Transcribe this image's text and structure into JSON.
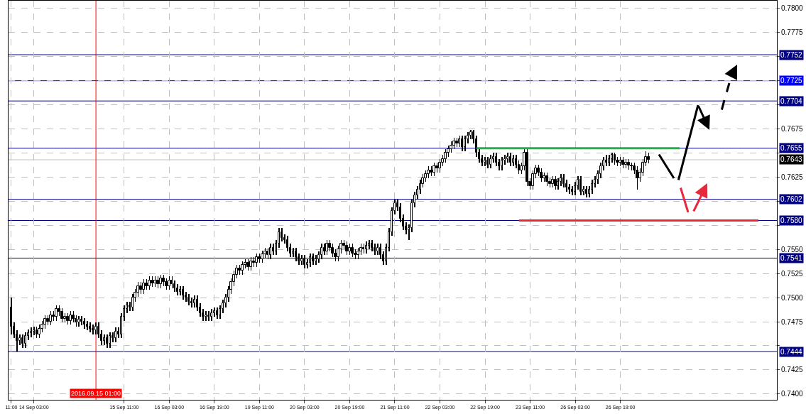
{
  "chart_data": {
    "type": "candlestick",
    "categories": [
      "11:00",
      null,
      null,
      null,
      null,
      null,
      null,
      null,
      "14 Sep 03:00",
      null,
      null,
      null,
      null,
      null,
      null,
      null,
      null,
      null,
      null,
      null,
      null,
      null,
      null,
      null,
      null,
      null,
      null,
      null,
      null,
      null,
      "2016.09.15 01:00",
      null,
      null,
      null,
      null,
      null,
      null,
      null,
      null,
      null,
      "15 Sep 11:00",
      null,
      null,
      null,
      null,
      null,
      null,
      null,
      null,
      null,
      null,
      null,
      null,
      null,
      null,
      null,
      "16 Sep 03:00",
      null,
      null,
      null,
      null,
      null,
      null,
      null,
      null,
      null,
      null,
      null,
      null,
      null,
      null,
      null,
      "16 Sep 19:00",
      null,
      null,
      null,
      null,
      null,
      null,
      null,
      null,
      null,
      null,
      null,
      null,
      null,
      null,
      null,
      "19 Sep 11:00",
      null,
      null,
      null,
      null,
      null,
      null,
      null,
      null,
      null,
      null,
      null,
      null,
      null,
      null,
      null,
      "20 Sep 03:00",
      null,
      null,
      null,
      null,
      null,
      null,
      null,
      null,
      null,
      null,
      null,
      null,
      null,
      null,
      null,
      "20 Sep 19:00",
      null,
      null,
      null,
      null,
      null,
      null,
      null,
      null,
      null,
      null,
      null,
      null,
      null,
      null,
      null,
      "21 Sep 11:00",
      null,
      null,
      null,
      null,
      null,
      null,
      null,
      null,
      null,
      null,
      null,
      null,
      null,
      null,
      null,
      "22 Sep 03:00",
      null,
      null,
      null,
      null,
      null,
      null,
      null,
      null,
      null,
      null,
      null,
      null,
      null,
      null,
      null,
      "22 Sep 19:00",
      null,
      null,
      null,
      null,
      null,
      null,
      null,
      null,
      null,
      null,
      null,
      null,
      null,
      null,
      null,
      "23 Sep 11:00",
      null,
      null,
      null,
      null,
      null,
      null,
      null,
      null,
      null,
      null,
      null,
      null,
      null,
      null,
      null,
      "26 Sep 03:00",
      null,
      null,
      null,
      null,
      null,
      null,
      null,
      null,
      null,
      null,
      null,
      null,
      null,
      null,
      null,
      "26 Sep 19:00",
      null,
      null,
      null,
      null,
      null,
      null,
      null,
      null,
      null,
      null,
      null,
      null,
      null,
      null,
      null,
      null,
      null,
      null,
      null,
      null,
      null,
      null,
      null,
      null,
      null,
      null,
      null,
      null,
      null,
      null,
      null,
      null,
      null,
      null,
      null,
      null,
      null,
      null,
      null,
      null,
      null,
      null,
      null,
      null,
      null,
      null,
      null,
      null,
      null,
      null,
      null,
      null,
      null,
      null,
      null
    ],
    "ohlc": [
      [
        0.749,
        0.75,
        0.7462,
        0.747
      ],
      [
        0.747,
        0.7474,
        0.7458,
        0.7462
      ],
      [
        0.7462,
        0.7466,
        0.7444,
        0.7455
      ],
      [
        0.7455,
        0.7462,
        0.7451,
        0.7458
      ],
      [
        0.7458,
        0.7462,
        0.7448,
        0.7452
      ],
      [
        0.7452,
        0.7464,
        0.7448,
        0.746
      ],
      [
        0.746,
        0.7467,
        0.7456,
        0.7463
      ],
      [
        0.7463,
        0.7469,
        0.7459,
        0.7465
      ],
      [
        0.7465,
        0.747,
        0.7461,
        0.7466
      ],
      [
        0.7466,
        0.747,
        0.7458,
        0.7462
      ],
      [
        0.7462,
        0.7472,
        0.7458,
        0.7468
      ],
      [
        0.7468,
        0.7476,
        0.7464,
        0.7472
      ],
      [
        0.7472,
        0.7482,
        0.7468,
        0.7478
      ],
      [
        0.7478,
        0.7482,
        0.7471,
        0.7475
      ],
      [
        0.7475,
        0.7486,
        0.7471,
        0.7482
      ],
      [
        0.7482,
        0.7486,
        0.7476,
        0.748
      ],
      [
        0.748,
        0.7492,
        0.7476,
        0.7488
      ],
      [
        0.7488,
        0.7492,
        0.7481,
        0.7485
      ],
      [
        0.7485,
        0.7489,
        0.7474,
        0.7478
      ],
      [
        0.7478,
        0.7484,
        0.7474,
        0.748
      ],
      [
        0.748,
        0.7484,
        0.7472,
        0.7476
      ],
      [
        0.7476,
        0.7486,
        0.7472,
        0.7482
      ],
      [
        0.7482,
        0.7486,
        0.7474,
        0.7478
      ],
      [
        0.7478,
        0.7482,
        0.747,
        0.7474
      ],
      [
        0.7474,
        0.7481,
        0.747,
        0.7477
      ],
      [
        0.7477,
        0.7481,
        0.7471,
        0.7475
      ],
      [
        0.7475,
        0.7479,
        0.7468,
        0.7472
      ],
      [
        0.7472,
        0.7476,
        0.7466,
        0.747
      ],
      [
        0.747,
        0.7474,
        0.7464,
        0.7468
      ],
      [
        0.7468,
        0.7472,
        0.7462,
        0.7466
      ],
      [
        0.7466,
        0.7474,
        0.7462,
        0.747
      ],
      [
        0.747,
        0.7474,
        0.7458,
        0.7462
      ],
      [
        0.7462,
        0.7466,
        0.7451,
        0.7455
      ],
      [
        0.7455,
        0.7462,
        0.7451,
        0.7458
      ],
      [
        0.7458,
        0.7462,
        0.7448,
        0.7452
      ],
      [
        0.7452,
        0.7464,
        0.7448,
        0.746
      ],
      [
        0.746,
        0.7464,
        0.7454,
        0.7458
      ],
      [
        0.7458,
        0.7469,
        0.7454,
        0.7465
      ],
      [
        0.7465,
        0.7469,
        0.7458,
        0.7462
      ],
      [
        0.7462,
        0.7484,
        0.7458,
        0.748
      ],
      [
        0.748,
        0.7492,
        0.7476,
        0.7488
      ],
      [
        0.7488,
        0.7496,
        0.7484,
        0.7492
      ],
      [
        0.7492,
        0.7496,
        0.7486,
        0.749
      ],
      [
        0.749,
        0.7504,
        0.7486,
        0.75
      ],
      [
        0.75,
        0.7509,
        0.7496,
        0.7505
      ],
      [
        0.7505,
        0.7516,
        0.7501,
        0.7512
      ],
      [
        0.7512,
        0.7516,
        0.7504,
        0.7508
      ],
      [
        0.7508,
        0.7519,
        0.7504,
        0.7515
      ],
      [
        0.7515,
        0.7519,
        0.7508,
        0.7512
      ],
      [
        0.7512,
        0.7522,
        0.7508,
        0.7518
      ],
      [
        0.7518,
        0.7522,
        0.7511,
        0.7515
      ],
      [
        0.7515,
        0.7522,
        0.7511,
        0.7518
      ],
      [
        0.7518,
        0.7522,
        0.751,
        0.7514
      ],
      [
        0.7514,
        0.7524,
        0.751,
        0.752
      ],
      [
        0.752,
        0.7524,
        0.7512,
        0.7516
      ],
      [
        0.7516,
        0.752,
        0.7508,
        0.7512
      ],
      [
        0.7512,
        0.7522,
        0.7508,
        0.7518
      ],
      [
        0.7518,
        0.7522,
        0.751,
        0.7514
      ],
      [
        0.7514,
        0.7518,
        0.7506,
        0.751
      ],
      [
        0.751,
        0.7514,
        0.7502,
        0.7506
      ],
      [
        0.7506,
        0.7512,
        0.7502,
        0.7508
      ],
      [
        0.7508,
        0.7512,
        0.7498,
        0.7502
      ],
      [
        0.7502,
        0.7506,
        0.7496,
        0.75
      ],
      [
        0.75,
        0.7504,
        0.7492,
        0.7496
      ],
      [
        0.7496,
        0.75,
        0.749,
        0.7494
      ],
      [
        0.7494,
        0.7502,
        0.749,
        0.7498
      ],
      [
        0.7498,
        0.7502,
        0.7486,
        0.749
      ],
      [
        0.749,
        0.7494,
        0.748,
        0.7484
      ],
      [
        0.7484,
        0.7488,
        0.7476,
        0.748
      ],
      [
        0.748,
        0.7486,
        0.7476,
        0.7482
      ],
      [
        0.7482,
        0.7486,
        0.7476,
        0.748
      ],
      [
        0.748,
        0.7488,
        0.7476,
        0.7484
      ],
      [
        0.7484,
        0.749,
        0.748,
        0.7486
      ],
      [
        0.7486,
        0.749,
        0.7478,
        0.7482
      ],
      [
        0.7482,
        0.7492,
        0.7478,
        0.7488
      ],
      [
        0.7488,
        0.7498,
        0.7484,
        0.7494
      ],
      [
        0.7494,
        0.7504,
        0.749,
        0.75
      ],
      [
        0.75,
        0.7512,
        0.7496,
        0.7508
      ],
      [
        0.7508,
        0.752,
        0.7504,
        0.7516
      ],
      [
        0.7516,
        0.7528,
        0.7512,
        0.7524
      ],
      [
        0.7524,
        0.7534,
        0.752,
        0.753
      ],
      [
        0.753,
        0.7534,
        0.7524,
        0.7528
      ],
      [
        0.7528,
        0.7538,
        0.7524,
        0.7534
      ],
      [
        0.7534,
        0.754,
        0.753,
        0.7536
      ],
      [
        0.7536,
        0.754,
        0.7528,
        0.7532
      ],
      [
        0.7532,
        0.7542,
        0.7528,
        0.7538
      ],
      [
        0.7538,
        0.7542,
        0.7532,
        0.7536
      ],
      [
        0.7536,
        0.7546,
        0.7532,
        0.7542
      ],
      [
        0.7542,
        0.7546,
        0.7536,
        0.754
      ],
      [
        0.754,
        0.7549,
        0.7536,
        0.7545
      ],
      [
        0.7545,
        0.7552,
        0.7541,
        0.7548
      ],
      [
        0.7548,
        0.7552,
        0.754,
        0.7544
      ],
      [
        0.7544,
        0.7556,
        0.754,
        0.7552
      ],
      [
        0.7552,
        0.7556,
        0.7544,
        0.7548
      ],
      [
        0.7548,
        0.756,
        0.7544,
        0.7556
      ],
      [
        0.7556,
        0.7572,
        0.7552,
        0.7568
      ],
      [
        0.7568,
        0.7572,
        0.7558,
        0.7562
      ],
      [
        0.7562,
        0.7566,
        0.7556,
        0.756
      ],
      [
        0.756,
        0.7564,
        0.7548,
        0.7552
      ],
      [
        0.7552,
        0.7556,
        0.7542,
        0.7546
      ],
      [
        0.7546,
        0.7552,
        0.7542,
        0.7548
      ],
      [
        0.7548,
        0.7552,
        0.7538,
        0.7542
      ],
      [
        0.7542,
        0.7546,
        0.7534,
        0.7538
      ],
      [
        0.7538,
        0.7544,
        0.7534,
        0.754
      ],
      [
        0.754,
        0.7544,
        0.753,
        0.7534
      ],
      [
        0.7534,
        0.754,
        0.753,
        0.7536
      ],
      [
        0.7536,
        0.7546,
        0.7532,
        0.7542
      ],
      [
        0.7542,
        0.7546,
        0.7534,
        0.7538
      ],
      [
        0.7538,
        0.7544,
        0.7534,
        0.754
      ],
      [
        0.754,
        0.7548,
        0.7536,
        0.7544
      ],
      [
        0.7544,
        0.7556,
        0.754,
        0.7552
      ],
      [
        0.7552,
        0.7556,
        0.7544,
        0.7548
      ],
      [
        0.7548,
        0.756,
        0.7544,
        0.7556
      ],
      [
        0.7556,
        0.756,
        0.7548,
        0.7552
      ],
      [
        0.7552,
        0.7556,
        0.7542,
        0.7546
      ],
      [
        0.7546,
        0.755,
        0.7538,
        0.7542
      ],
      [
        0.7542,
        0.7554,
        0.7538,
        0.755
      ],
      [
        0.755,
        0.756,
        0.7546,
        0.7556
      ],
      [
        0.7556,
        0.756,
        0.755,
        0.7554
      ],
      [
        0.7554,
        0.7558,
        0.7544,
        0.7548
      ],
      [
        0.7548,
        0.7556,
        0.7544,
        0.7552
      ],
      [
        0.7552,
        0.7556,
        0.7542,
        0.7546
      ],
      [
        0.7546,
        0.755,
        0.754,
        0.7544
      ],
      [
        0.7544,
        0.7552,
        0.754,
        0.7548
      ],
      [
        0.7548,
        0.7556,
        0.7544,
        0.7552
      ],
      [
        0.7552,
        0.7556,
        0.7546,
        0.755
      ],
      [
        0.755,
        0.7558,
        0.7546,
        0.7554
      ],
      [
        0.7554,
        0.756,
        0.755,
        0.7556
      ],
      [
        0.7556,
        0.756,
        0.7548,
        0.7552
      ],
      [
        0.7552,
        0.7556,
        0.7544,
        0.7548
      ],
      [
        0.7548,
        0.7556,
        0.7544,
        0.7552
      ],
      [
        0.7552,
        0.7556,
        0.754,
        0.7544
      ],
      [
        0.7544,
        0.7548,
        0.7534,
        0.7538
      ],
      [
        0.7538,
        0.7556,
        0.7534,
        0.7552
      ],
      [
        0.7552,
        0.7572,
        0.7548,
        0.7568
      ],
      [
        0.7568,
        0.7594,
        0.7564,
        0.759
      ],
      [
        0.759,
        0.7602,
        0.7586,
        0.7598
      ],
      [
        0.7598,
        0.7602,
        0.759,
        0.7594
      ],
      [
        0.7594,
        0.7598,
        0.7578,
        0.7582
      ],
      [
        0.7582,
        0.7586,
        0.757,
        0.7574
      ],
      [
        0.7574,
        0.7578,
        0.7566,
        0.757
      ],
      [
        0.757,
        0.7576,
        0.756,
        0.7572
      ],
      [
        0.7572,
        0.7602,
        0.7568,
        0.7598
      ],
      [
        0.7598,
        0.761,
        0.7594,
        0.7606
      ],
      [
        0.7606,
        0.7616,
        0.7602,
        0.7612
      ],
      [
        0.7612,
        0.7622,
        0.7608,
        0.7618
      ],
      [
        0.7618,
        0.7628,
        0.7614,
        0.7624
      ],
      [
        0.7624,
        0.7632,
        0.762,
        0.7628
      ],
      [
        0.7628,
        0.7636,
        0.7624,
        0.7632
      ],
      [
        0.7632,
        0.7636,
        0.7626,
        0.763
      ],
      [
        0.763,
        0.764,
        0.7626,
        0.7636
      ],
      [
        0.7636,
        0.764,
        0.763,
        0.7634
      ],
      [
        0.7634,
        0.7644,
        0.763,
        0.764
      ],
      [
        0.764,
        0.7648,
        0.7636,
        0.7644
      ],
      [
        0.7644,
        0.7654,
        0.764,
        0.765
      ],
      [
        0.765,
        0.7658,
        0.7646,
        0.7654
      ],
      [
        0.7654,
        0.7662,
        0.765,
        0.7658
      ],
      [
        0.7658,
        0.7666,
        0.7654,
        0.7662
      ],
      [
        0.7662,
        0.7666,
        0.7656,
        0.766
      ],
      [
        0.766,
        0.7668,
        0.7656,
        0.7664
      ],
      [
        0.7664,
        0.7668,
        0.7652,
        0.7656
      ],
      [
        0.7656,
        0.7668,
        0.7652,
        0.7664
      ],
      [
        0.7664,
        0.7672,
        0.766,
        0.7668
      ],
      [
        0.7668,
        0.7674,
        0.7664,
        0.7672
      ],
      [
        0.7672,
        0.7674,
        0.766,
        0.7664
      ],
      [
        0.7664,
        0.7668,
        0.7646,
        0.765
      ],
      [
        0.765,
        0.7654,
        0.764,
        0.7644
      ],
      [
        0.7644,
        0.7648,
        0.7636,
        0.764
      ],
      [
        0.764,
        0.7646,
        0.7636,
        0.7642
      ],
      [
        0.7642,
        0.7646,
        0.7634,
        0.7638
      ],
      [
        0.7638,
        0.7648,
        0.7634,
        0.7644
      ],
      [
        0.7644,
        0.765,
        0.764,
        0.7646
      ],
      [
        0.7646,
        0.765,
        0.7636,
        0.764
      ],
      [
        0.764,
        0.7644,
        0.7632,
        0.7636
      ],
      [
        0.7636,
        0.7646,
        0.7632,
        0.7642
      ],
      [
        0.7642,
        0.7648,
        0.7638,
        0.7644
      ],
      [
        0.7644,
        0.765,
        0.764,
        0.7646
      ],
      [
        0.7646,
        0.765,
        0.7636,
        0.764
      ],
      [
        0.764,
        0.7648,
        0.7636,
        0.7644
      ],
      [
        0.7644,
        0.7648,
        0.7634,
        0.7638
      ],
      [
        0.7638,
        0.7642,
        0.7628,
        0.7632
      ],
      [
        0.7632,
        0.764,
        0.7628,
        0.7636
      ],
      [
        0.7636,
        0.7654,
        0.7632,
        0.765
      ],
      [
        0.765,
        0.7654,
        0.7616,
        0.762
      ],
      [
        0.762,
        0.7624,
        0.7612,
        0.7616
      ],
      [
        0.7616,
        0.7632,
        0.7612,
        0.7628
      ],
      [
        0.7628,
        0.7638,
        0.7624,
        0.7634
      ],
      [
        0.7634,
        0.7638,
        0.7626,
        0.763
      ],
      [
        0.763,
        0.7634,
        0.762,
        0.7624
      ],
      [
        0.7624,
        0.763,
        0.762,
        0.7626
      ],
      [
        0.7626,
        0.763,
        0.7616,
        0.762
      ],
      [
        0.762,
        0.7624,
        0.7614,
        0.7618
      ],
      [
        0.7618,
        0.7626,
        0.7614,
        0.7622
      ],
      [
        0.7622,
        0.7626,
        0.7612,
        0.7616
      ],
      [
        0.7616,
        0.7624,
        0.7612,
        0.762
      ],
      [
        0.762,
        0.7628,
        0.7616,
        0.7624
      ],
      [
        0.7624,
        0.7628,
        0.7614,
        0.7618
      ],
      [
        0.7618,
        0.7622,
        0.761,
        0.7614
      ],
      [
        0.7614,
        0.7618,
        0.7608,
        0.7612
      ],
      [
        0.7612,
        0.7616,
        0.7606,
        0.761
      ],
      [
        0.761,
        0.762,
        0.7606,
        0.7616
      ],
      [
        0.7616,
        0.7626,
        0.7612,
        0.7622
      ],
      [
        0.7622,
        0.7626,
        0.7606,
        0.761
      ],
      [
        0.761,
        0.7616,
        0.7606,
        0.7612
      ],
      [
        0.7612,
        0.7616,
        0.7604,
        0.7608
      ],
      [
        0.7608,
        0.7616,
        0.7604,
        0.7612
      ],
      [
        0.7612,
        0.7622,
        0.7608,
        0.7618
      ],
      [
        0.7618,
        0.7626,
        0.7614,
        0.7622
      ],
      [
        0.7622,
        0.7632,
        0.7618,
        0.7628
      ],
      [
        0.7628,
        0.764,
        0.7624,
        0.7636
      ],
      [
        0.7636,
        0.7646,
        0.7632,
        0.7642
      ],
      [
        0.7642,
        0.7648,
        0.7636,
        0.764
      ],
      [
        0.764,
        0.7648,
        0.7636,
        0.7644
      ],
      [
        0.7644,
        0.765,
        0.764,
        0.7648
      ],
      [
        0.7648,
        0.765,
        0.7638,
        0.7642
      ],
      [
        0.7642,
        0.7646,
        0.7636,
        0.764
      ],
      [
        0.764,
        0.7646,
        0.7636,
        0.7642
      ],
      [
        0.7642,
        0.7646,
        0.7634,
        0.7638
      ],
      [
        0.7638,
        0.7644,
        0.7634,
        0.764
      ],
      [
        0.764,
        0.7644,
        0.7633,
        0.7637
      ],
      [
        0.7637,
        0.764,
        0.7632,
        0.7636
      ],
      [
        0.7636,
        0.764,
        0.7628,
        0.7632
      ],
      [
        0.7632,
        0.7636,
        0.7612,
        0.7624
      ],
      [
        0.7624,
        0.7634,
        0.762,
        0.763
      ],
      [
        0.763,
        0.7644,
        0.7626,
        0.764
      ],
      [
        0.764,
        0.7652,
        0.7636,
        0.7646
      ],
      [
        0.7646,
        0.765,
        0.7639,
        0.7643
      ],
      null,
      null,
      null,
      null,
      null,
      null,
      null,
      null,
      null,
      null,
      null,
      null,
      null,
      null,
      null,
      null,
      null,
      null,
      null,
      null,
      null,
      null,
      null,
      null,
      null,
      null,
      null,
      null,
      null,
      null,
      null,
      null,
      null,
      null,
      null,
      null,
      null,
      null,
      null,
      null,
      null,
      null,
      null,
      null,
      null
    ],
    "series": [
      {
        "type": "line",
        "color": "#22b14c",
        "values": [
          null,
          null,
          null,
          null,
          null,
          null,
          null,
          null,
          null,
          null,
          null,
          null,
          null,
          null,
          null,
          null,
          null,
          null,
          null,
          null,
          null,
          null,
          null,
          null,
          null,
          null,
          null,
          null,
          null,
          null,
          null,
          null,
          null,
          null,
          null,
          null,
          null,
          null,
          null,
          null,
          null,
          null,
          null,
          null,
          null,
          null,
          null,
          null,
          null,
          null,
          null,
          null,
          null,
          null,
          null,
          null,
          null,
          null,
          null,
          null,
          null,
          null,
          null,
          null,
          null,
          null,
          null,
          null,
          null,
          null,
          null,
          null,
          null,
          null,
          null,
          null,
          null,
          null,
          null,
          null,
          null,
          null,
          null,
          null,
          null,
          null,
          null,
          null,
          null,
          null,
          null,
          null,
          null,
          null,
          null,
          null,
          null,
          null,
          null,
          null,
          null,
          null,
          null,
          null,
          null,
          null,
          null,
          null,
          null,
          null,
          null,
          null,
          null,
          null,
          null,
          null,
          null,
          null,
          null,
          null,
          null,
          null,
          null,
          null,
          null,
          null,
          null,
          null,
          null,
          null,
          null,
          null,
          null,
          null,
          null,
          null,
          null,
          null,
          null,
          null,
          null,
          null,
          null,
          null,
          null,
          null,
          null,
          null,
          null,
          null,
          null,
          null,
          null,
          null,
          null,
          null,
          null,
          null,
          null,
          null,
          null,
          null,
          null,
          null,
          null,
          0.7655,
          0.7655,
          0.7655,
          0.7655,
          0.7655,
          0.7655,
          0.7655,
          0.7655,
          0.7655,
          0.7655,
          0.7655,
          0.7655,
          0.7655,
          0.7655,
          0.7655,
          0.7655,
          0.7655,
          0.7655,
          0.7655,
          0.7655,
          0.7655,
          0.7655,
          0.7655,
          0.7655,
          0.7655,
          0.7655,
          0.7655,
          0.7655,
          0.7655,
          0.7655,
          0.7655,
          0.7655,
          0.7655,
          0.7655,
          0.7655,
          0.7655,
          0.7655,
          0.7655,
          0.7655,
          0.7655,
          0.7655,
          0.7655,
          0.7655,
          0.7655,
          0.7655,
          0.7655,
          0.7655,
          0.7655,
          0.7655,
          0.7655,
          0.7655,
          0.7655,
          0.7655,
          0.7655,
          0.7655,
          0.7655,
          0.7655,
          0.7655,
          0.7655,
          0.7655,
          0.7655,
          0.7655,
          0.7655,
          0.7655,
          0.7655,
          0.7655,
          0.7655,
          0.7655,
          0.7655,
          0.7655,
          0.7655,
          0.7655,
          0.7655,
          null,
          null,
          null,
          null,
          null,
          null,
          null,
          null,
          null,
          null,
          null,
          null,
          null,
          null,
          null,
          null,
          null,
          null,
          null,
          null,
          null,
          null,
          null,
          null,
          null,
          null,
          null,
          null,
          null,
          null,
          null,
          null,
          null,
          null
        ]
      },
      {
        "type": "line",
        "color": "#e8283c",
        "values": [
          null,
          null,
          null,
          null,
          null,
          null,
          null,
          null,
          null,
          null,
          null,
          null,
          null,
          null,
          null,
          null,
          null,
          null,
          null,
          null,
          null,
          null,
          null,
          null,
          null,
          null,
          null,
          null,
          null,
          null,
          null,
          null,
          null,
          null,
          null,
          null,
          null,
          null,
          null,
          null,
          null,
          null,
          null,
          null,
          null,
          null,
          null,
          null,
          null,
          null,
          null,
          null,
          null,
          null,
          null,
          null,
          null,
          null,
          null,
          null,
          null,
          null,
          null,
          null,
          null,
          null,
          null,
          null,
          null,
          null,
          null,
          null,
          null,
          null,
          null,
          null,
          null,
          null,
          null,
          null,
          null,
          null,
          null,
          null,
          null,
          null,
          null,
          null,
          null,
          null,
          null,
          null,
          null,
          null,
          null,
          null,
          null,
          null,
          null,
          null,
          null,
          null,
          null,
          null,
          null,
          null,
          null,
          null,
          null,
          null,
          null,
          null,
          null,
          null,
          null,
          null,
          null,
          null,
          null,
          null,
          null,
          null,
          null,
          null,
          null,
          null,
          null,
          null,
          null,
          null,
          null,
          null,
          null,
          null,
          null,
          null,
          null,
          null,
          null,
          null,
          null,
          null,
          null,
          null,
          null,
          null,
          null,
          null,
          null,
          null,
          null,
          null,
          null,
          null,
          null,
          null,
          null,
          null,
          null,
          null,
          null,
          null,
          null,
          null,
          null,
          null,
          null,
          null,
          null,
          null,
          null,
          null,
          null,
          null,
          null,
          null,
          null,
          null,
          null,
          null,
          0.758,
          0.758,
          0.758,
          0.758,
          0.758,
          0.758,
          0.758,
          0.758,
          0.758,
          0.758,
          0.758,
          0.758,
          0.758,
          0.758,
          0.758,
          0.758,
          0.758,
          0.758,
          0.758,
          0.758,
          0.758,
          0.758,
          0.758,
          0.758,
          0.758,
          0.758,
          0.758,
          0.758,
          0.758,
          0.758,
          0.758,
          0.758,
          0.758,
          0.758,
          0.758,
          0.758,
          0.758,
          0.758,
          0.758,
          0.758,
          0.758,
          0.758,
          0.758,
          0.758,
          0.758,
          0.758,
          0.758,
          0.758,
          0.758,
          0.758,
          0.758,
          0.758,
          0.758,
          0.758,
          0.758,
          0.758,
          0.758,
          0.758,
          0.758,
          0.758,
          0.758,
          0.758,
          0.758,
          0.758,
          0.758,
          0.758,
          0.758,
          0.758,
          0.758,
          0.758,
          0.758,
          0.758,
          0.758,
          0.758,
          0.758,
          0.758,
          0.758,
          0.758,
          0.758,
          0.758,
          0.758,
          0.758,
          0.758,
          0.758,
          0.758,
          0.758,
          null,
          null,
          null,
          null,
          null,
          null
        ]
      }
    ],
    "ylim": [
      0.7394,
      0.7808
    ],
    "yticks": [
      {
        "value": 0.74,
        "label": "0.7400"
      },
      {
        "value": 0.7425,
        "label": "0.7425"
      },
      {
        "value": 0.745,
        "label": null
      },
      {
        "value": 0.7475,
        "label": "0.7475"
      },
      {
        "value": 0.75,
        "label": "0.7500"
      },
      {
        "value": 0.7525,
        "label": "0.7525"
      },
      {
        "value": 0.755,
        "label": "0.7550"
      },
      {
        "value": 0.7575,
        "label": null
      },
      {
        "value": 0.76,
        "label": null
      },
      {
        "value": 0.7625,
        "label": "0.7625"
      },
      {
        "value": 0.765,
        "label": null
      },
      {
        "value": 0.7675,
        "label": "0.7675"
      },
      {
        "value": 0.77,
        "label": null
      },
      {
        "value": 0.7725,
        "label": null
      },
      {
        "value": 0.775,
        "label": null
      },
      {
        "value": 0.7775,
        "label": "0.7775"
      },
      {
        "value": 0.78,
        "label": "0.7800"
      }
    ],
    "ref_lines": [
      {
        "axis": "y",
        "value": 0.7752,
        "label": "0.7752",
        "color": "#000080"
      },
      {
        "axis": "y",
        "value": 0.7725,
        "label": "0.7725",
        "color": "#0000ff"
      },
      {
        "axis": "y",
        "value": 0.7704,
        "label": "0.7704",
        "color": "#000080"
      },
      {
        "axis": "y",
        "value": 0.7655,
        "label": "0.7655",
        "color": "#000080"
      },
      {
        "axis": "y",
        "value": 0.7643,
        "label": "0.7643",
        "color": "#c0c0c0"
      },
      {
        "axis": "y",
        "value": 0.7602,
        "label": "0.7602",
        "color": "#000080"
      },
      {
        "axis": "y",
        "value": 0.758,
        "label": "0.7580",
        "color": "#000080"
      },
      {
        "axis": "y",
        "value": 0.7541,
        "label": "0.7541",
        "color": "#000080"
      },
      {
        "axis": "y",
        "value": 0.7444,
        "label": "0.7444",
        "color": "#000080"
      },
      {
        "axis": "x",
        "value": "2016.09.15 01:00",
        "color": "#ff0000"
      }
    ],
    "grid": true
  }
}
